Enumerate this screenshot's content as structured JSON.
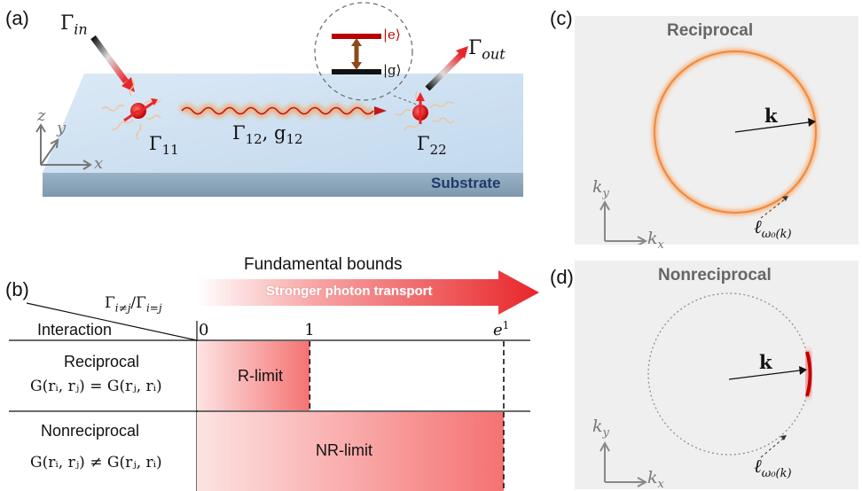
{
  "panel_a": {
    "label": "(a)",
    "gamma_in": "Γ",
    "gamma_in_sub": "in",
    "gamma_out": "Γ",
    "gamma_out_sub": "out",
    "gamma_11": "Γ",
    "gamma_11_sub": "11",
    "gamma_22": "Γ",
    "gamma_22_sub": "22",
    "gamma_12": "Γ",
    "gamma_12_sub": "12",
    "g_12": ", g",
    "g_12_sub": "12",
    "excited_state": "|e⟩",
    "ground_state": "|g⟩",
    "axis_z": "z",
    "axis_y": "y",
    "axis_x": "x",
    "substrate": "Substrate"
  },
  "panel_b": {
    "label": "(b)",
    "heading": "Fundamental bounds",
    "ratio_label": "Γ",
    "ratio_sub1": "i≠j",
    "ratio_mid": "/Γ",
    "ratio_sub2": "i=j",
    "arrow_text": "Stronger photon transport",
    "interaction_header": "Interaction",
    "tick_0": "0",
    "tick_1": "1",
    "tick_e": "e",
    "tick_e_sup": "1",
    "row1_name": "Reciprocal",
    "row1_eq": "G(rᵢ, rⱼ) = G(rⱼ, rᵢ)",
    "row1_bar": "R-limit",
    "row1_value": 1,
    "row2_name": "Nonreciprocal",
    "row2_eq": "G(rᵢ, rⱼ) ≠ G(rⱼ, rᵢ)",
    "row2_bar": "NR-limit",
    "row2_value": 2.718
  },
  "panel_c": {
    "label": "(c)",
    "title": "Reciprocal",
    "k_label": "k",
    "ky": "k",
    "ky_sub": "y",
    "kx": "k",
    "kx_sub": "x",
    "ell": "ℓ",
    "ell_sub": "ω₀(k)"
  },
  "panel_d": {
    "label": "(d)",
    "title": "Nonreciprocal",
    "k_label": "k",
    "ky": "k",
    "ky_sub": "y",
    "kx": "k",
    "kx_sub": "x",
    "ell": "ℓ",
    "ell_sub": "ω₀(k)"
  },
  "colors": {
    "accent_red": "#e8262a",
    "orange_ring": "#f08a3c",
    "substrate_top": "#cfe3f2",
    "substrate_side": "#8fa9bd",
    "substrate_text": "#1f3a6b",
    "panel_bg": "#efefef"
  }
}
